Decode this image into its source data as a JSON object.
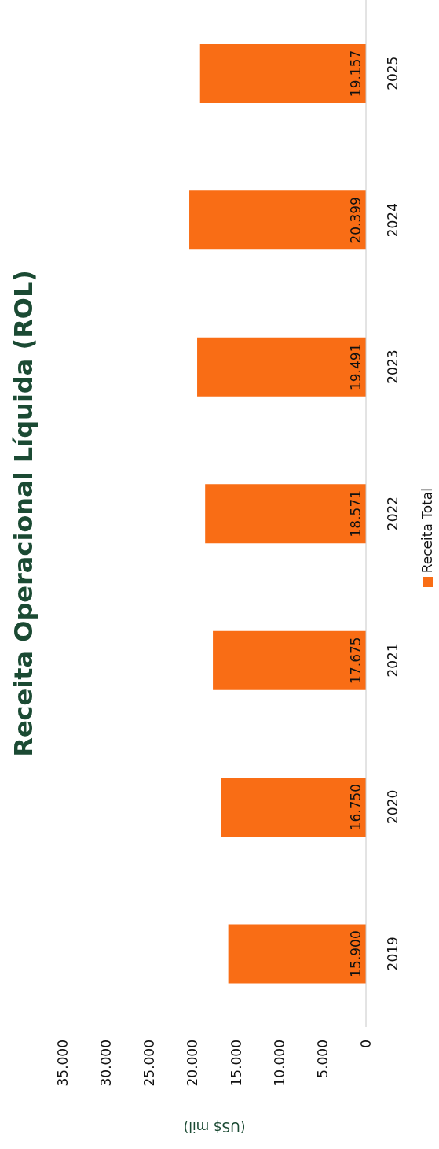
{
  "chart_data": {
    "type": "bar",
    "orientation": "horizontal",
    "title": "Receita Operacional Líquida (ROL)",
    "xlabel": "(US$ mil)",
    "categories": [
      "2025",
      "2024",
      "2023",
      "2022",
      "2021",
      "2020",
      "2019"
    ],
    "series": [
      {
        "name": "Receita Total",
        "color": "#f96d15",
        "values": [
          19157,
          20399,
          19491,
          18571,
          17675,
          16750,
          15900
        ],
        "value_labels": [
          "19.157",
          "20.399",
          "19.491",
          "18.571",
          "17.675",
          "16.750",
          "15.900"
        ]
      }
    ],
    "xlim": [
      35000,
      0
    ],
    "xticks": [
      {
        "value": 35000,
        "label": "35.000"
      },
      {
        "value": 30000,
        "label": "30.000"
      },
      {
        "value": 25000,
        "label": "25.000"
      },
      {
        "value": 20000,
        "label": "20.000"
      },
      {
        "value": 15000,
        "label": "15.000"
      },
      {
        "value": 10000,
        "label": "10.000"
      },
      {
        "value": 5000,
        "label": "5.000"
      },
      {
        "value": 0,
        "label": "0"
      }
    ],
    "legend": "right"
  }
}
